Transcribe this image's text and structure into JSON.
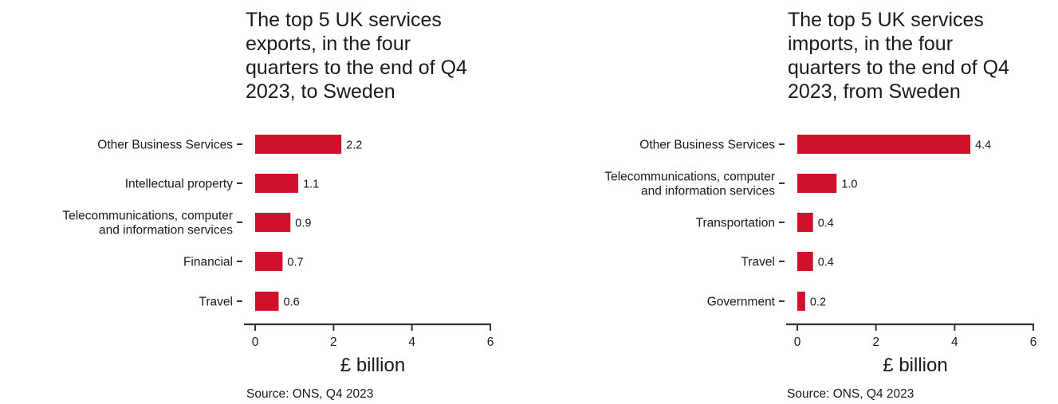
{
  "chart_data": [
    {
      "type": "bar",
      "orientation": "horizontal",
      "title": "The top 5 UK services\nexports, in the four\nquarters to the end of Q4\n2023, to Sweden",
      "categories": [
        "Other Business Services",
        "Intellectual property",
        "Telecommunications, computer\nand information services",
        "Financial",
        "Travel"
      ],
      "values": [
        2.2,
        1.1,
        0.9,
        0.7,
        0.6
      ],
      "value_labels": [
        "2.2",
        "1.1",
        "0.9",
        "0.7",
        "0.6"
      ],
      "xlabel": "£ billion",
      "xlim": [
        0,
        6
      ],
      "xticks": [
        "0",
        "2",
        "4",
        "6"
      ],
      "grid": false,
      "bar_color": "#d0112b",
      "source": "Source: ONS, Q4 2023"
    },
    {
      "type": "bar",
      "orientation": "horizontal",
      "title": "The top 5 UK services\nimports, in the four\nquarters to the end of Q4\n2023, from Sweden",
      "categories": [
        "Other Business Services",
        "Telecommunications, computer\nand information services",
        "Transportation",
        "Travel",
        "Government"
      ],
      "values": [
        4.4,
        1.0,
        0.4,
        0.4,
        0.2
      ],
      "value_labels": [
        "4.4",
        "1.0",
        "0.4",
        "0.4",
        "0.2"
      ],
      "xlabel": "£ billion",
      "xlim": [
        0,
        6
      ],
      "xticks": [
        "0",
        "2",
        "4",
        "6"
      ],
      "grid": false,
      "bar_color": "#d0112b",
      "source": "Source: ONS, Q4 2023"
    }
  ]
}
